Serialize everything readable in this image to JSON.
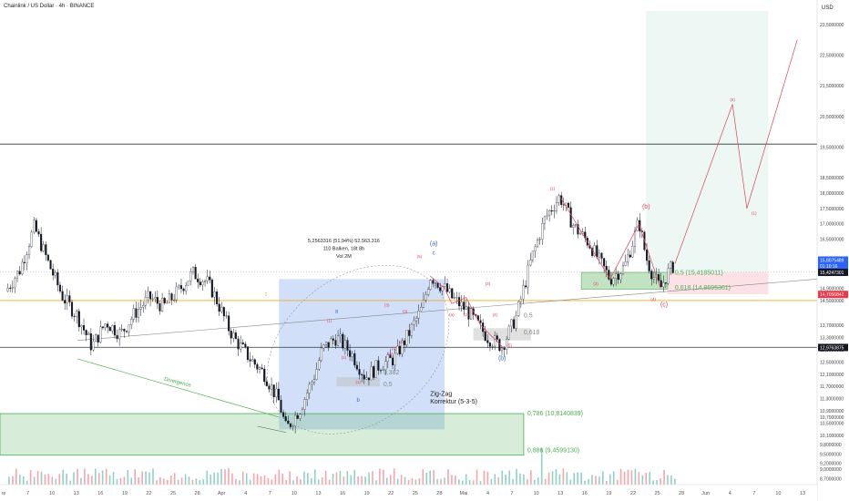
{
  "header": {
    "title": "Chainlink / US Dollar · 4h · BINANCE"
  },
  "price_axis": {
    "currency": "USD",
    "ticks": [
      "23,5000000",
      "22,5000000",
      "21,5000000",
      "20,5000000",
      "19,5000000",
      "18,5000000",
      "18,0000000",
      "17,5000000",
      "17,0000000",
      "16,5000000",
      "15,5000000",
      "14,9000000",
      "14,5000000",
      "13,7000000",
      "13,3000000",
      "12,9000000",
      "12,5000000",
      "12,1000000",
      "11,7000000",
      "11,3000000",
      "10,9000000",
      "10,7000000",
      "10,5000000",
      "10,1000000",
      "9,8000000",
      "9,5000000",
      "9,2000000",
      "9,0000000",
      "8,7000000"
    ],
    "badges": [
      {
        "label": "15,8075489",
        "color": "#2962ff"
      },
      {
        "label": "01:10:16",
        "color": "#2962ff"
      },
      {
        "label": "15,4247301",
        "color": "#131722"
      },
      {
        "label": "14,7056842",
        "color": "#f23645"
      },
      {
        "label": "12,9763875",
        "color": "#131722"
      }
    ]
  },
  "time_axis": {
    "ticks": [
      "re",
      "7",
      "10",
      "13",
      "16",
      "19",
      "22",
      "25",
      "28",
      "Apr",
      "4",
      "7",
      "10",
      "13",
      "16",
      "19",
      "22",
      "25",
      "28",
      "Mai",
      "4",
      "7",
      "10",
      "13",
      "16",
      "19",
      "22",
      "25",
      "28",
      "Jun",
      "4",
      "7",
      "10",
      "13"
    ]
  },
  "measure": {
    "line1": "5,2563316 (51,94%) 52.563.316",
    "line2": "110 Balken, 18t 8h",
    "line3": "Vol 2M"
  },
  "annotations": {
    "divergence": "Divergence",
    "zigzag_line1": "Zig-Zag",
    "zigzag_line2": "Korrektur (5-3-5)",
    "wave_a": "(a)",
    "wave_b": "(b)",
    "wave_c": "(c)",
    "wave_b_small": "(b)",
    "c_small": "c",
    "a_small": "a",
    "b_small": "b",
    "waves_small": [
      "(1)",
      "(2)",
      "(3)",
      "(4)",
      "(5)",
      "(1)",
      "(2)",
      "(3)",
      "(4)",
      "(1)",
      "(a)",
      "(2)",
      "(3)",
      "(4)",
      "(5)",
      "(3)",
      "(4)",
      "(5)",
      "(1)"
    ],
    "fib_05_mid": "0,5",
    "fib_0618_mid": "0,618",
    "fib_0382": "0,382",
    "fib_05_left": "0,5",
    "fib_05_right": "0,5 (15,4185011)",
    "fib_0618_right": "0,618 (14,8695361)",
    "fib_0786": "0,786 (10,8140839)",
    "fib_0886": "0,886 (9,4599130)",
    "marker_1": "1"
  },
  "colors": {
    "up": "#089981",
    "down": "#f23645",
    "candle": "#131722",
    "elliott": "#e0405a",
    "blue_label": "#3a6bd6",
    "green_zone": "#4caf50",
    "orange_line": "#f5a623"
  },
  "chart_data": {
    "type": "candlestick",
    "symbol": "LINKUSD",
    "interval": "4h",
    "exchange": "BINANCE",
    "currency": "USD",
    "y_range": [
      8.5,
      24.0
    ],
    "close_path": [
      [
        0,
        14.8
      ],
      [
        2,
        15.5
      ],
      [
        4,
        16.9
      ],
      [
        6,
        15.7
      ],
      [
        8,
        14.6
      ],
      [
        10,
        14.0
      ],
      [
        12,
        13.0
      ],
      [
        14,
        13.8
      ],
      [
        16,
        13.4
      ],
      [
        18,
        14.1
      ],
      [
        20,
        14.6
      ],
      [
        22,
        14.3
      ],
      [
        24,
        14.8
      ],
      [
        26,
        15.4
      ],
      [
        28,
        15.1
      ],
      [
        29,
        14.7
      ],
      [
        31,
        13.6
      ],
      [
        32,
        13.2
      ],
      [
        34,
        12.6
      ],
      [
        36,
        12.1
      ],
      [
        38,
        11.2
      ],
      [
        39,
        10.3
      ],
      [
        41,
        11.0
      ],
      [
        43,
        12.1
      ],
      [
        44,
        12.9
      ],
      [
        46,
        13.3
      ],
      [
        48,
        12.8
      ],
      [
        50,
        12.0
      ],
      [
        52,
        12.4
      ],
      [
        54,
        12.6
      ],
      [
        56,
        13.4
      ],
      [
        58,
        14.3
      ],
      [
        59,
        15.3
      ],
      [
        61,
        14.9
      ],
      [
        62,
        14.6
      ],
      [
        64,
        14.2
      ],
      [
        66,
        13.6
      ],
      [
        67,
        13.3
      ],
      [
        69,
        13.0
      ],
      [
        71,
        14.0
      ],
      [
        73,
        15.8
      ],
      [
        75,
        17.2
      ],
      [
        77,
        17.9
      ],
      [
        79,
        16.9
      ],
      [
        81,
        16.4
      ],
      [
        83,
        15.6
      ],
      [
        84,
        15.2
      ],
      [
        86,
        15.6
      ],
      [
        87,
        16.3
      ],
      [
        88,
        17.1
      ],
      [
        89,
        15.9
      ],
      [
        90,
        15.3
      ],
      [
        91,
        14.9
      ],
      [
        92,
        15.4
      ],
      [
        93,
        15.7
      ]
    ],
    "projection": [
      [
        93,
        15.7
      ],
      [
        101,
        20.9
      ],
      [
        103,
        17.5
      ],
      [
        110,
        23.0
      ]
    ],
    "price_labels": {
      "fib_05": 15.4185011,
      "fib_0618": 14.8695361,
      "fib_0786": 10.8140839,
      "fib_0886": 9.459913,
      "current": 15.4247301,
      "marker_red": 14.7056842,
      "marker_line": 12.9763875,
      "upper_line": 19.6
    },
    "measure": {
      "change": 5.2563316,
      "change_percent": 51.94,
      "bars": 110
    }
  }
}
